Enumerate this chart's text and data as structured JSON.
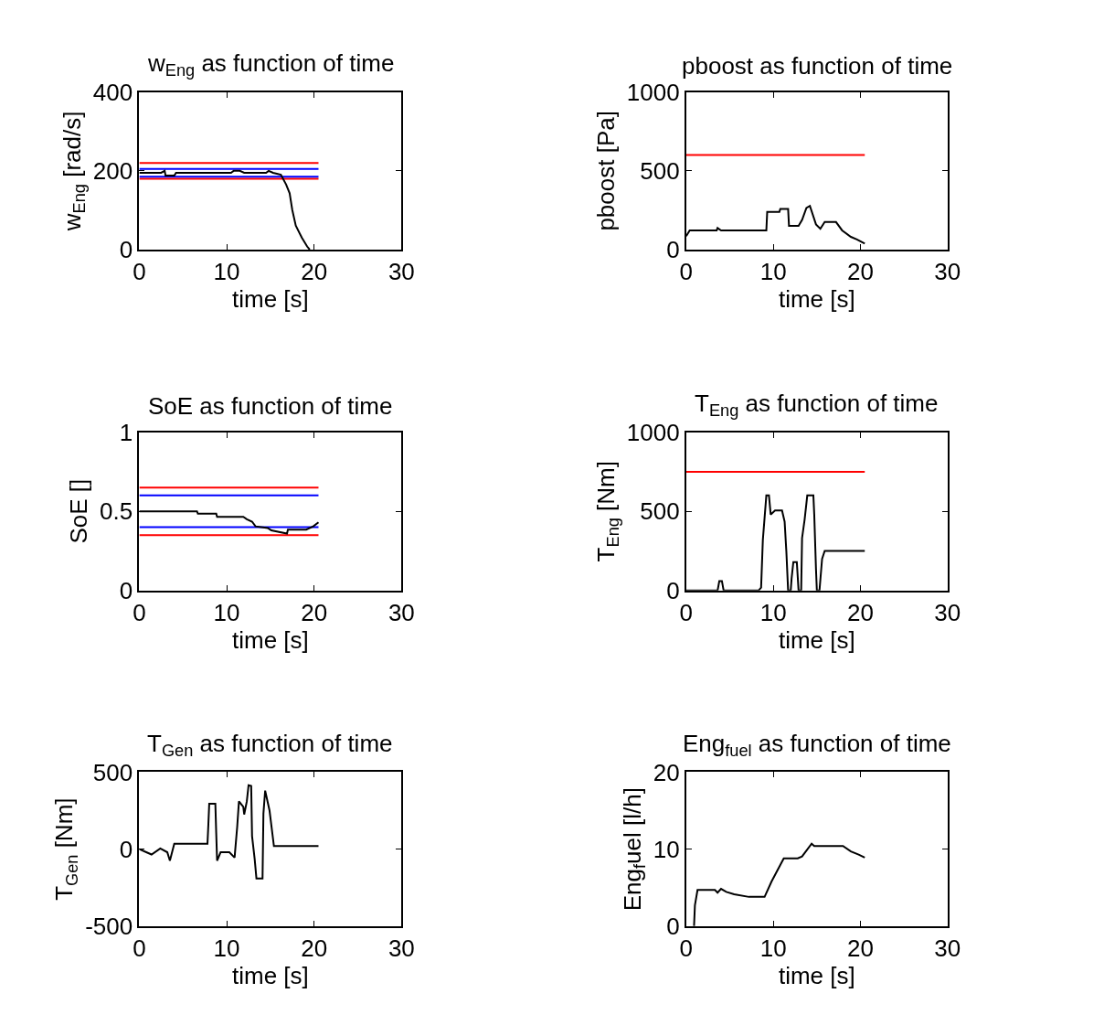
{
  "chart_data": [
    {
      "type": "line",
      "title": "w$_{Eng}$ as function of time",
      "xlabel": "time [s]",
      "ylabel": "w$_{Eng}$ [rad/s]",
      "xlim": [
        0,
        30
      ],
      "xticks": [
        0,
        10,
        20,
        30
      ],
      "ylim": [
        0,
        400
      ],
      "yticks": [
        0,
        200,
        400
      ],
      "series": [
        {
          "color": "#ff0000",
          "x": [
            0,
            20.5
          ],
          "values": [
            220,
            220
          ]
        },
        {
          "color": "#ff0000",
          "x": [
            0,
            20.5
          ],
          "values": [
            180,
            180
          ]
        },
        {
          "color": "#0000ff",
          "x": [
            0,
            20.5
          ],
          "values": [
            205,
            205
          ]
        },
        {
          "color": "#0000ff",
          "x": [
            0,
            20.5
          ],
          "values": [
            185,
            185
          ]
        },
        {
          "color": "#000000",
          "x": [
            0,
            2.5,
            2.9,
            3.0,
            4.0,
            4.2,
            10.5,
            10.8,
            11.5,
            12.0,
            14.5,
            14.8,
            15.3,
            16.2,
            16.8,
            17.2,
            17.5,
            17.9,
            18.6,
            19.2,
            19.5
          ],
          "values": [
            195,
            195,
            200,
            188,
            188,
            195,
            195,
            200,
            200,
            195,
            195,
            200,
            195,
            190,
            165,
            143,
            101,
            61,
            30,
            8,
            0
          ]
        }
      ]
    },
    {
      "type": "line",
      "title": "pboost as function of time",
      "xlabel": "time [s]",
      "ylabel": "pboost [Pa]",
      "xlim": [
        0,
        30
      ],
      "xticks": [
        0,
        10,
        20,
        30
      ],
      "ylim": [
        0,
        1000
      ],
      "yticks": [
        0,
        500,
        1000
      ],
      "series": [
        {
          "color": "#ff0000",
          "x": [
            0,
            20.5
          ],
          "values": [
            600,
            600
          ]
        },
        {
          "color": "#000000",
          "x": [
            0,
            0.4,
            3.5,
            3.6,
            4.0,
            9.2,
            9.3,
            10.7,
            10.8,
            11.7,
            11.8,
            12.9,
            13.3,
            13.8,
            14.2,
            14.9,
            15.4,
            15.9,
            17.2,
            17.9,
            18.9,
            19.6,
            20.5
          ],
          "values": [
            85,
            122,
            122,
            137,
            122,
            122,
            239,
            239,
            258,
            258,
            151,
            151,
            188,
            264,
            277,
            160,
            132,
            175,
            175,
            122,
            81,
            65,
            38
          ]
        }
      ]
    },
    {
      "type": "line",
      "title": "SoE as function of time",
      "xlabel": "time [s]",
      "ylabel": "SoE []",
      "xlim": [
        0,
        30
      ],
      "xticks": [
        0,
        10,
        20,
        30
      ],
      "ylim": [
        0,
        1
      ],
      "yticks": [
        0,
        0.5,
        1
      ],
      "series": [
        {
          "color": "#ff0000",
          "x": [
            0,
            20.5
          ],
          "values": [
            0.65,
            0.65
          ]
        },
        {
          "color": "#0000ff",
          "x": [
            0,
            20.5
          ],
          "values": [
            0.6,
            0.6
          ]
        },
        {
          "color": "#0000ff",
          "x": [
            0,
            20.5
          ],
          "values": [
            0.4,
            0.4
          ]
        },
        {
          "color": "#ff0000",
          "x": [
            0,
            20.5
          ],
          "values": [
            0.35,
            0.35
          ]
        },
        {
          "color": "#000000",
          "x": [
            0,
            6.6,
            6.7,
            8.8,
            8.9,
            11.9,
            12.3,
            12.9,
            13.3,
            14.7,
            15.1,
            16.9,
            17.0,
            19.1,
            19.9,
            20.5
          ],
          "values": [
            0.5,
            0.5,
            0.485,
            0.485,
            0.465,
            0.465,
            0.45,
            0.435,
            0.405,
            0.395,
            0.38,
            0.36,
            0.385,
            0.385,
            0.405,
            0.43
          ]
        }
      ]
    },
    {
      "type": "line",
      "title": "T$_{Eng}$ as function of time",
      "xlabel": "time [s]",
      "ylabel": "T$_{Eng}$ [Nm]",
      "xlim": [
        0,
        30
      ],
      "xticks": [
        0,
        10,
        20,
        30
      ],
      "ylim": [
        0,
        1000
      ],
      "yticks": [
        0,
        500,
        1000
      ],
      "series": [
        {
          "color": "#ff0000",
          "x": [
            0,
            20.5
          ],
          "values": [
            750,
            750
          ]
        },
        {
          "color": "#000000",
          "x": [
            0,
            3.6,
            3.8,
            4.1,
            4.3,
            8.3,
            8.6,
            8.8,
            9.2,
            9.5,
            9.7,
            10.2,
            11.0,
            11.3,
            11.5,
            11.7,
            12.0,
            12.1,
            12.3,
            12.7,
            12.9,
            13.2,
            13.3,
            13.6,
            13.9,
            14.6,
            14.7,
            14.9,
            15.0,
            15.3,
            15.6,
            15.9,
            20.5
          ],
          "values": [
            0,
            0,
            60,
            60,
            0,
            0,
            19,
            320,
            600,
            600,
            480,
            505,
            505,
            435,
            245,
            0,
            0,
            76,
            180,
            180,
            0,
            0,
            330,
            450,
            600,
            600,
            480,
            135,
            0,
            0,
            200,
            250,
            250
          ]
        }
      ]
    },
    {
      "type": "line",
      "title": "T$_{Gen}$ as function of time",
      "xlabel": "time [s]",
      "ylabel": "T$_{Gen}$ [Nm]",
      "xlim": [
        0,
        30
      ],
      "xticks": [
        0,
        10,
        20,
        30
      ],
      "ylim": [
        -500,
        500
      ],
      "yticks": [
        -500,
        0,
        500
      ],
      "series": [
        {
          "color": "#000000",
          "x": [
            0,
            0.8,
            1.4,
            2.4,
            3.2,
            3.5,
            4.0,
            7.8,
            7.9,
            8.0,
            8.7,
            8.8,
            8.9,
            9.3,
            10.3,
            10.9,
            11.2,
            11.4,
            11.9,
            12.0,
            12.3,
            12.5,
            12.8,
            12.9,
            13.2,
            13.4,
            14.1,
            14.2,
            14.4,
            14.9,
            15.4,
            20.5
          ],
          "values": [
            0,
            -20,
            -35,
            5,
            -20,
            -75,
            35,
            35,
            160,
            295,
            295,
            105,
            -75,
            -20,
            -20,
            -55,
            145,
            310,
            275,
            225,
            310,
            415,
            410,
            85,
            -65,
            -190,
            -190,
            230,
            380,
            250,
            20,
            20
          ]
        }
      ]
    },
    {
      "type": "line",
      "title": "Eng$_{fuel}$ as function of time",
      "xlabel": "time [s]",
      "ylabel": "Eng$_{f}$uel [l/h]",
      "xlim": [
        0,
        30
      ],
      "xticks": [
        0,
        10,
        20,
        30
      ],
      "ylim": [
        0,
        20
      ],
      "yticks": [
        0,
        10,
        20
      ],
      "series": [
        {
          "color": "#000000",
          "x": [
            0.9,
            1.0,
            1.3,
            3.3,
            3.6,
            4.0,
            4.6,
            5.5,
            7.2,
            9.0,
            9.8,
            11.2,
            12.8,
            13.3,
            14.4,
            14.7,
            18.0,
            18.9,
            19.8,
            20.5
          ],
          "values": [
            0,
            2.7,
            4.7,
            4.7,
            4.35,
            4.85,
            4.45,
            4.15,
            3.8,
            3.8,
            5.8,
            8.8,
            8.8,
            9.05,
            10.7,
            10.4,
            10.4,
            9.7,
            9.3,
            8.9
          ]
        }
      ]
    }
  ]
}
